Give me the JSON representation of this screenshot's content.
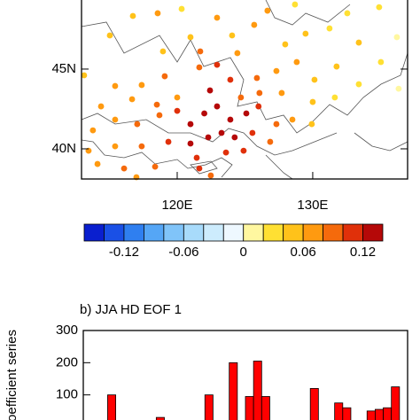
{
  "chart_data": [
    {
      "type": "scatter",
      "xlim": [
        112.94,
        137.0
      ],
      "ylim": [
        38.11,
        49.33
      ],
      "xticks": [
        {
          "value": 120,
          "label": "120E"
        },
        {
          "value": 130,
          "label": "130E"
        }
      ],
      "yticks": [
        {
          "value": 45,
          "label": "45N"
        },
        {
          "value": 40,
          "label": "40N"
        }
      ],
      "x": [
        116.73,
        118.56,
        120.33,
        120.98,
        122.94,
        124.05,
        125.68,
        126.66,
        127.97,
        129.47,
        131.24,
        132.55,
        133.4,
        134.9,
        136.21,
        128.69,
        124.44,
        121.7,
        118.95,
        115.03,
        113.13,
        115.42,
        117.38,
        119.08,
        120.0,
        121.63,
        122.94,
        123.92,
        122.42,
        124.7,
        125.88,
        127.32,
        128.82,
        130.13,
        131.76,
        133.4,
        135.03,
        136.34,
        126.07,
        127.71,
        130.0,
        131.63,
        114.38,
        116.67,
        118.5,
        113.78,
        115.42,
        117.05,
        118.69,
        120.0,
        120.98,
        122.0,
        122.94,
        123.92,
        125.1,
        126.0,
        127.32,
        128.5,
        129.93,
        123.27,
        124.24,
        122.29,
        120.98,
        119.35,
        117.38,
        115.42,
        113.46,
        125.55,
        126.86,
        123.6,
        124.9,
        121.44,
        114.12,
        116.08,
        118.37,
        121.63,
        122.48,
        116.99
      ],
      "y": [
        48.33,
        48.5,
        48.77,
        47.0,
        48.22,
        47.11,
        47.77,
        48.66,
        46.55,
        47.22,
        47.55,
        48.5,
        46.66,
        48.88,
        47.0,
        49.05,
        46.0,
        46.11,
        46.11,
        47.11,
        44.61,
        43.94,
        44.0,
        44.55,
        43.22,
        45.11,
        45.27,
        44.33,
        43.66,
        43.22,
        44.44,
        44.88,
        45.44,
        44.33,
        45.16,
        44.05,
        45.44,
        43.77,
        43.5,
        43.5,
        42.94,
        43.22,
        42.66,
        43.11,
        42.77,
        41.16,
        41.83,
        41.55,
        42.11,
        42.38,
        41.55,
        42.22,
        42.66,
        41.83,
        42.22,
        42.66,
        41.55,
        41.83,
        41.55,
        41.0,
        40.72,
        40.72,
        40.33,
        40.44,
        40.16,
        40.16,
        39.88,
        41.0,
        40.44,
        39.77,
        39.88,
        39.44,
        39.05,
        38.77,
        38.88,
        38.77,
        38.33,
        38.22
      ],
      "values": [
        0.06,
        0.07,
        0.04,
        0.06,
        0.08,
        0.06,
        0.07,
        0.07,
        0.06,
        0.05,
        0.04,
        0.03,
        0.05,
        0.03,
        0.02,
        0.03,
        0.07,
        0.09,
        0.05,
        0.05,
        0.06,
        0.08,
        0.07,
        0.09,
        0.08,
        0.1,
        0.12,
        0.12,
        0.13,
        0.1,
        0.09,
        0.07,
        0.08,
        0.06,
        0.05,
        0.04,
        0.03,
        0.02,
        0.1,
        0.07,
        0.05,
        0.04,
        0.07,
        0.08,
        0.09,
        0.08,
        0.08,
        0.09,
        0.1,
        0.12,
        0.13,
        0.14,
        0.13,
        0.14,
        0.13,
        0.11,
        0.09,
        0.07,
        0.05,
        0.14,
        0.13,
        0.14,
        0.13,
        0.11,
        0.09,
        0.08,
        0.07,
        0.12,
        0.1,
        0.12,
        0.11,
        0.12,
        0.08,
        0.09,
        0.1,
        0.11,
        0.1,
        0.07
      ],
      "clim": [
        -0.16,
        0.14
      ],
      "colors": [
        "#0a1fcf",
        "#1a50e6",
        "#2f7ff0",
        "#55a6f6",
        "#80c4f9",
        "#a8dbfb",
        "#cdecfd",
        "#eef8ff",
        "#fff7a0",
        "#ffe033",
        "#ffc21a",
        "#ff9a10",
        "#f56a0c",
        "#e0300a",
        "#b50808"
      ],
      "colorbar_ticks": [
        -0.12,
        -0.06,
        0,
        0.06,
        0.12
      ]
    },
    {
      "type": "bar",
      "title": "b) JJA HD EOF 1",
      "y_label": "oefficient series",
      "categories": [
        null,
        null,
        null,
        null,
        null,
        null,
        null,
        null,
        null,
        null,
        null,
        null,
        null,
        null,
        null,
        null,
        null,
        null,
        null,
        null,
        null,
        null,
        null,
        null,
        null,
        null,
        null,
        null,
        null,
        null,
        null,
        null,
        null,
        null,
        null,
        null,
        null,
        null,
        null,
        null
      ],
      "values": [
        null,
        null,
        null,
        100,
        null,
        null,
        null,
        null,
        null,
        30,
        null,
        null,
        null,
        null,
        null,
        100,
        null,
        null,
        200,
        null,
        95,
        205,
        95,
        null,
        null,
        null,
        null,
        null,
        120,
        null,
        null,
        75,
        60,
        null,
        null,
        50,
        55,
        60,
        125,
        null
      ],
      "color": "#ff0000",
      "ylim": [
        0,
        300
      ],
      "yticks": [
        100,
        200,
        300
      ]
    }
  ]
}
